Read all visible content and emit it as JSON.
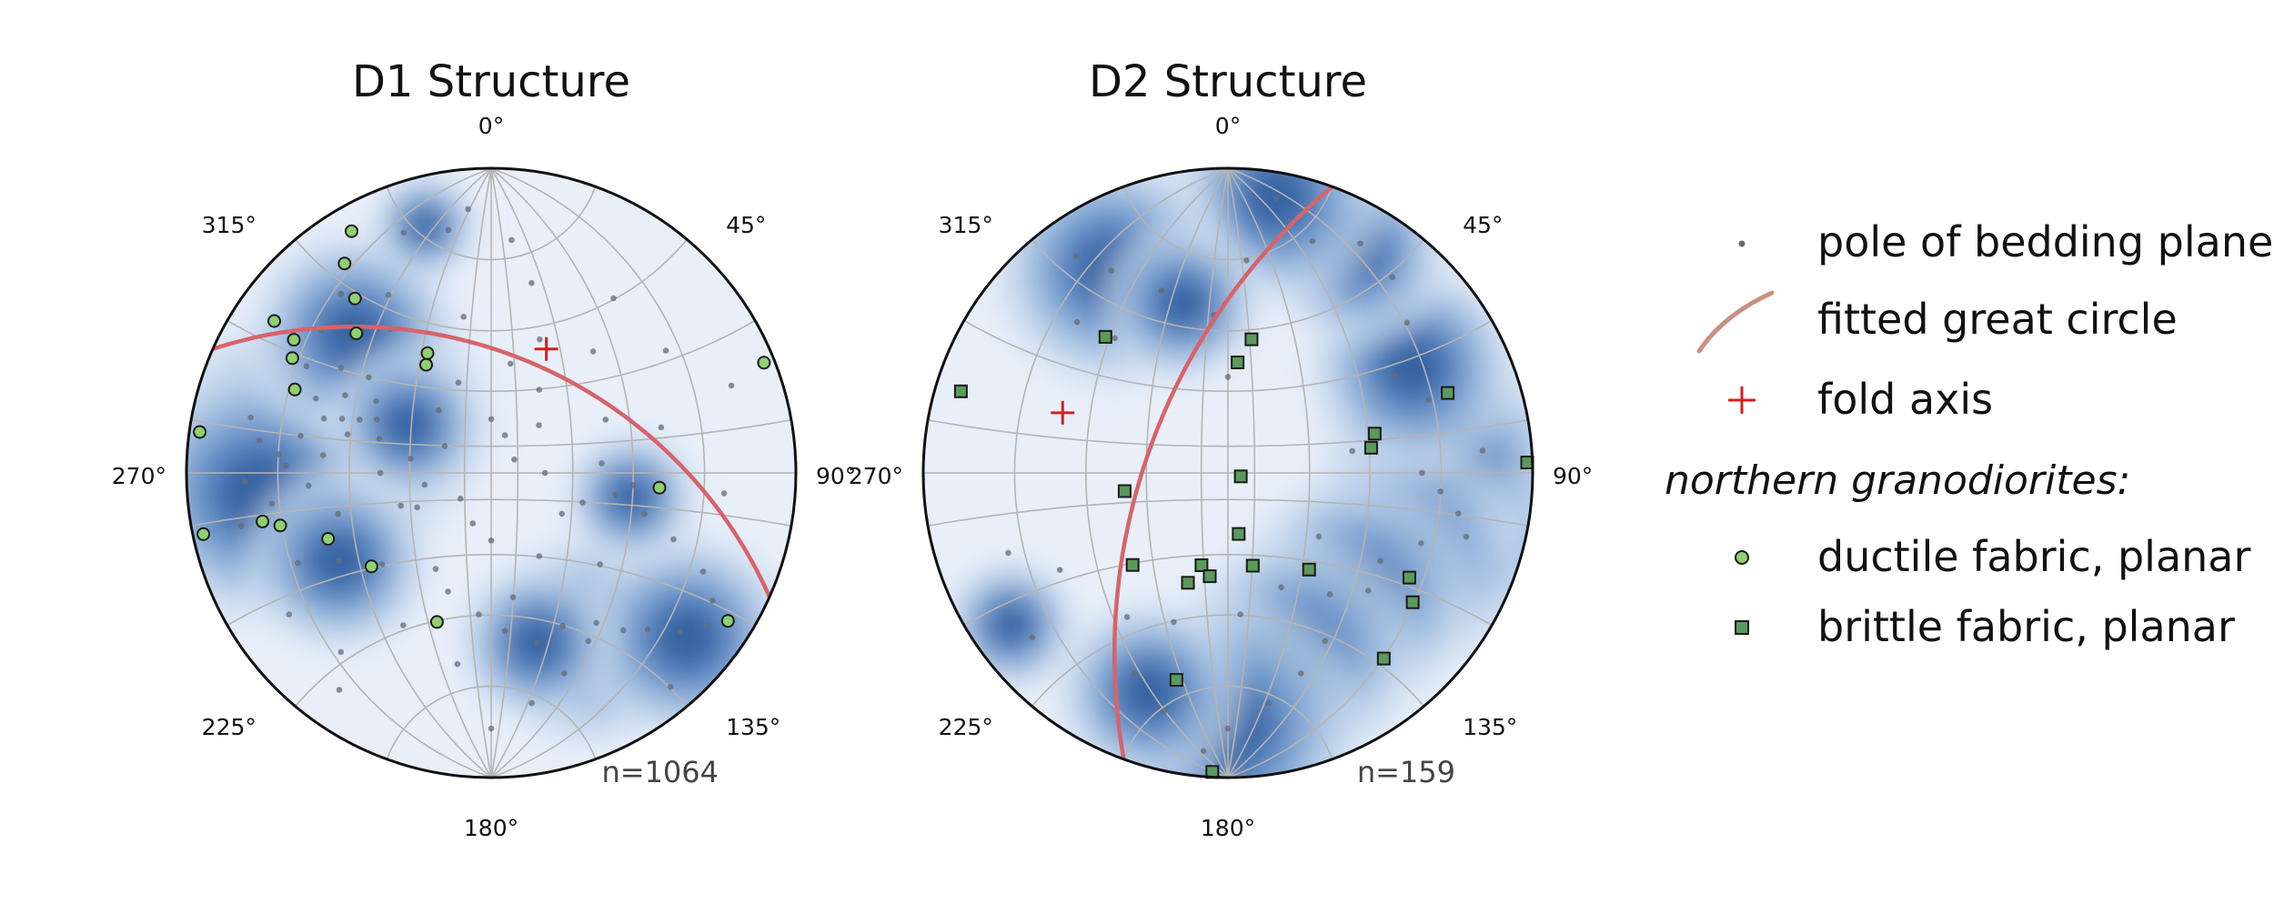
{
  "chart_data": [
    {
      "type": "scatter",
      "subtype": "stereonet",
      "title": "D1 Structure",
      "n_label": "n=1064",
      "azimuth_labels": [
        "0°",
        "45°",
        "90°",
        "135°",
        "180°",
        "225°",
        "270°",
        "315°"
      ],
      "density_contours": [
        {
          "azimuth": 292,
          "plunge": 40,
          "weight": 1.0
        },
        {
          "azimuth": 275,
          "plunge": 20,
          "weight": 1.0
        },
        {
          "azimuth": 265,
          "plunge": 15,
          "weight": 1.0
        },
        {
          "azimuth": 315,
          "plunge": 25,
          "weight": 0.8
        },
        {
          "azimuth": 300,
          "plunge": 55,
          "weight": 0.6
        },
        {
          "azimuth": 240,
          "plunge": 30,
          "weight": 0.7
        },
        {
          "azimuth": 150,
          "plunge": 25,
          "weight": 0.8
        },
        {
          "azimuth": 130,
          "plunge": 10,
          "weight": 0.8
        },
        {
          "azimuth": 165,
          "plunge": 30,
          "weight": 0.6
        },
        {
          "azimuth": 100,
          "plunge": 40,
          "weight": 0.5
        },
        {
          "azimuth": 345,
          "plunge": 10,
          "weight": 0.4
        }
      ],
      "poles_of_bedding": [
        {
          "azimuth": 292,
          "plunge": 40
        },
        {
          "azimuth": 290,
          "plunge": 35
        },
        {
          "azimuth": 295,
          "plunge": 45
        },
        {
          "azimuth": 288,
          "plunge": 30
        },
        {
          "azimuth": 285,
          "plunge": 38
        },
        {
          "azimuth": 298,
          "plunge": 33
        },
        {
          "azimuth": 275,
          "plunge": 20
        },
        {
          "azimuth": 278,
          "plunge": 15
        },
        {
          "azimuth": 272,
          "plunge": 22
        },
        {
          "azimuth": 268,
          "plunge": 12
        },
        {
          "azimuth": 262,
          "plunge": 18
        },
        {
          "azimuth": 258,
          "plunge": 10
        },
        {
          "azimuth": 281,
          "plunge": 25
        },
        {
          "azimuth": 283,
          "plunge": 12
        },
        {
          "azimuth": 300,
          "plunge": 20
        },
        {
          "azimuth": 305,
          "plunge": 28
        },
        {
          "azimuth": 310,
          "plunge": 18
        },
        {
          "azimuth": 315,
          "plunge": 25
        },
        {
          "azimuth": 320,
          "plunge": 15
        },
        {
          "azimuth": 325,
          "plunge": 30
        },
        {
          "azimuth": 330,
          "plunge": 22
        },
        {
          "azimuth": 340,
          "plunge": 10
        },
        {
          "azimuth": 350,
          "plunge": 12
        },
        {
          "azimuth": 355,
          "plunge": 8
        },
        {
          "azimuth": 5,
          "plunge": 15
        },
        {
          "azimuth": 12,
          "plunge": 25
        },
        {
          "azimuth": 20,
          "plunge": 40
        },
        {
          "azimuth": 30,
          "plunge": 55
        },
        {
          "azimuth": 40,
          "plunge": 35
        },
        {
          "azimuth": 55,
          "plunge": 20
        },
        {
          "azimuth": 65,
          "plunge": 45
        },
        {
          "azimuth": 75,
          "plunge": 30
        },
        {
          "azimuth": 85,
          "plunge": 50
        },
        {
          "azimuth": 95,
          "plunge": 40
        },
        {
          "azimuth": 100,
          "plunge": 45
        },
        {
          "azimuth": 105,
          "plunge": 35
        },
        {
          "azimuth": 110,
          "plunge": 25
        },
        {
          "azimuth": 115,
          "plunge": 15
        },
        {
          "azimuth": 120,
          "plunge": 10
        },
        {
          "azimuth": 125,
          "plunge": 8
        },
        {
          "azimuth": 130,
          "plunge": 12
        },
        {
          "azimuth": 135,
          "plunge": 18
        },
        {
          "azimuth": 140,
          "plunge": 22
        },
        {
          "azimuth": 145,
          "plunge": 28
        },
        {
          "azimuth": 150,
          "plunge": 25
        },
        {
          "azimuth": 155,
          "plunge": 32
        },
        {
          "azimuth": 160,
          "plunge": 20
        },
        {
          "azimuth": 165,
          "plunge": 30
        },
        {
          "azimuth": 170,
          "plunge": 15
        },
        {
          "azimuth": 175,
          "plunge": 35
        },
        {
          "azimuth": 180,
          "plunge": 10
        },
        {
          "azimuth": 190,
          "plunge": 25
        },
        {
          "azimuth": 200,
          "plunge": 45
        },
        {
          "azimuth": 210,
          "plunge": 30
        },
        {
          "azimuth": 220,
          "plunge": 15
        },
        {
          "azimuth": 230,
          "plunge": 40
        },
        {
          "azimuth": 240,
          "plunge": 30
        },
        {
          "azimuth": 245,
          "plunge": 20
        },
        {
          "azimuth": 250,
          "plunge": 55
        },
        {
          "azimuth": 255,
          "plunge": 35
        },
        {
          "azimuth": 260,
          "plunge": 65
        },
        {
          "azimuth": 270,
          "plunge": 50
        },
        {
          "azimuth": 280,
          "plunge": 60
        },
        {
          "azimuth": 300,
          "plunge": 70
        },
        {
          "azimuth": 320,
          "plunge": 60
        },
        {
          "azimuth": 340,
          "plunge": 55
        },
        {
          "azimuth": 0,
          "plunge": 70
        },
        {
          "azimuth": 20,
          "plunge": 75
        },
        {
          "azimuth": 45,
          "plunge": 65
        },
        {
          "azimuth": 60,
          "plunge": 80
        },
        {
          "azimuth": 90,
          "plunge": 70
        },
        {
          "azimuth": 120,
          "plunge": 60
        },
        {
          "azimuth": 150,
          "plunge": 55
        },
        {
          "azimuth": 180,
          "plunge": 65
        },
        {
          "azimuth": 200,
          "plunge": 70
        },
        {
          "azimuth": 230,
          "plunge": 75
        },
        {
          "azimuth": 130,
          "plunge": 40
        },
        {
          "azimuth": 170,
          "plunge": 45
        },
        {
          "azimuth": 210,
          "plunge": 50
        },
        {
          "azimuth": 245,
          "plunge": 60
        },
        {
          "azimuth": 350,
          "plunge": 35
        },
        {
          "azimuth": 10,
          "plunge": 50
        },
        {
          "azimuth": 35,
          "plunge": 20
        },
        {
          "azimuth": 70,
          "plunge": 10
        },
        {
          "azimuth": 95,
          "plunge": 15
        },
        {
          "azimuth": 108,
          "plunge": 55
        },
        {
          "azimuth": 140,
          "plunge": 5
        },
        {
          "azimuth": 185,
          "plunge": 40
        },
        {
          "azimuth": 215,
          "plunge": 8
        },
        {
          "azimuth": 235,
          "plunge": 12
        },
        {
          "azimuth": 287,
          "plunge": 48
        },
        {
          "azimuth": 293,
          "plunge": 26
        },
        {
          "azimuth": 276,
          "plunge": 32
        },
        {
          "azimuth": 266,
          "plunge": 28
        },
        {
          "azimuth": 302,
          "plunge": 42
        },
        {
          "azimuth": 308,
          "plunge": 36
        }
      ],
      "ductile_fabric_planar": [
        {
          "azimuth": 330,
          "plunge": 5
        },
        {
          "azimuth": 325,
          "plunge": 10
        },
        {
          "azimuth": 322,
          "plunge": 18
        },
        {
          "azimuth": 316,
          "plunge": 25
        },
        {
          "azimuth": 305,
          "plunge": 8
        },
        {
          "azimuth": 304,
          "plunge": 14
        },
        {
          "azimuth": 300,
          "plunge": 16
        },
        {
          "azimuth": 293,
          "plunge": 20
        },
        {
          "azimuth": 278,
          "plunge": 2
        },
        {
          "azimuth": 258,
          "plunge": 2
        },
        {
          "azimuth": 258,
          "plunge": 15
        },
        {
          "azimuth": 256,
          "plunge": 19
        },
        {
          "azimuth": 248,
          "plunge": 30
        },
        {
          "azimuth": 232,
          "plunge": 37
        },
        {
          "azimuth": 200,
          "plunge": 35
        },
        {
          "azimuth": 329,
          "plunge": 45
        },
        {
          "azimuth": 332,
          "plunge": 42
        },
        {
          "azimuth": 68,
          "plunge": 2
        },
        {
          "azimuth": 95,
          "plunge": 32
        },
        {
          "azimuth": 122,
          "plunge": 5
        }
      ],
      "fitted_great_circle": {
        "dip_direction": 24,
        "dip": 48
      },
      "fold_axis": {
        "azimuth": 24,
        "plunge": 42
      }
    },
    {
      "type": "scatter",
      "subtype": "stereonet",
      "title": "D2 Structure",
      "n_label": "n=159",
      "azimuth_labels": [
        "0°",
        "45°",
        "90°",
        "135°",
        "180°",
        "225°",
        "270°",
        "315°"
      ],
      "density_contours": [
        {
          "azimuth": 100,
          "plunge": 15,
          "weight": 1.0
        },
        {
          "azimuth": 85,
          "plunge": 20,
          "weight": 0.9
        },
        {
          "azimuth": 115,
          "plunge": 25,
          "weight": 0.9
        },
        {
          "azimuth": 135,
          "plunge": 30,
          "weight": 0.9
        },
        {
          "azimuth": 160,
          "plunge": 25,
          "weight": 0.9
        },
        {
          "azimuth": 180,
          "plunge": 10,
          "weight": 1.0
        },
        {
          "azimuth": 200,
          "plunge": 15,
          "weight": 0.7
        },
        {
          "azimuth": 60,
          "plunge": 20,
          "weight": 0.8
        },
        {
          "azimuth": 30,
          "plunge": 10,
          "weight": 0.7
        },
        {
          "azimuth": 10,
          "plunge": 5,
          "weight": 0.8
        },
        {
          "azimuth": 330,
          "plunge": 15,
          "weight": 0.9
        },
        {
          "azimuth": 345,
          "plunge": 30,
          "weight": 0.6
        },
        {
          "azimuth": 235,
          "plunge": 8,
          "weight": 0.5
        }
      ],
      "poles_of_bedding": [
        {
          "azimuth": 100,
          "plunge": 15
        },
        {
          "azimuth": 95,
          "plunge": 20
        },
        {
          "azimuth": 105,
          "plunge": 12
        },
        {
          "azimuth": 90,
          "plunge": 25
        },
        {
          "azimuth": 110,
          "plunge": 22
        },
        {
          "azimuth": 85,
          "plunge": 10
        },
        {
          "azimuth": 120,
          "plunge": 30
        },
        {
          "azimuth": 130,
          "plunge": 28
        },
        {
          "azimuth": 140,
          "plunge": 35
        },
        {
          "azimuth": 150,
          "plunge": 25
        },
        {
          "azimuth": 160,
          "plunge": 20
        },
        {
          "azimuth": 170,
          "plunge": 15
        },
        {
          "azimuth": 180,
          "plunge": 10
        },
        {
          "azimuth": 185,
          "plunge": 5
        },
        {
          "azimuth": 195,
          "plunge": 12
        },
        {
          "azimuth": 205,
          "plunge": 18
        },
        {
          "azimuth": 175,
          "plunge": 40
        },
        {
          "azimuth": 155,
          "plunge": 45
        },
        {
          "azimuth": 70,
          "plunge": 20
        },
        {
          "azimuth": 60,
          "plunge": 25
        },
        {
          "azimuth": 50,
          "plunge": 15
        },
        {
          "azimuth": 40,
          "plunge": 10
        },
        {
          "azimuth": 30,
          "plunge": 8
        },
        {
          "azimuth": 20,
          "plunge": 12
        },
        {
          "azimuth": 10,
          "plunge": 5
        },
        {
          "azimuth": 5,
          "plunge": 20
        },
        {
          "azimuth": 355,
          "plunge": 35
        },
        {
          "azimuth": 340,
          "plunge": 25
        },
        {
          "azimuth": 330,
          "plunge": 15
        },
        {
          "azimuth": 325,
          "plunge": 8
        },
        {
          "azimuth": 315,
          "plunge": 20
        },
        {
          "azimuth": 320,
          "plunge": 30
        },
        {
          "azimuth": 250,
          "plunge": 15
        },
        {
          "azimuth": 230,
          "plunge": 10
        },
        {
          "azimuth": 240,
          "plunge": 25
        },
        {
          "azimuth": 200,
          "plunge": 35
        },
        {
          "azimuth": 215,
          "plunge": 30
        },
        {
          "azimuth": 0,
          "plunge": 55
        },
        {
          "azimuth": 80,
          "plunge": 45
        },
        {
          "azimuth": 125,
          "plunge": 50
        }
      ],
      "brittle_fabric_planar": [
        {
          "azimuth": 5,
          "plunge": 50
        },
        {
          "azimuth": 10,
          "plunge": 42
        },
        {
          "azimuth": 318,
          "plunge": 28
        },
        {
          "azimuth": 287,
          "plunge": 5
        },
        {
          "azimuth": 70,
          "plunge": 15
        },
        {
          "azimuth": 88,
          "plunge": 1
        },
        {
          "azimuth": 80,
          "plunge": 39
        },
        {
          "azimuth": 75,
          "plunge": 37
        },
        {
          "azimuth": 260,
          "plunge": 52
        },
        {
          "azimuth": 105,
          "plunge": 85
        },
        {
          "azimuth": 170,
          "plunge": 67
        },
        {
          "azimuth": 226,
          "plunge": 43
        },
        {
          "azimuth": 196,
          "plunge": 55
        },
        {
          "azimuth": 190,
          "plunge": 52
        },
        {
          "azimuth": 200,
          "plunge": 48
        },
        {
          "azimuth": 165,
          "plunge": 55
        },
        {
          "azimuth": 140,
          "plunge": 45
        },
        {
          "azimuth": 120,
          "plunge": 21
        },
        {
          "azimuth": 125,
          "plunge": 17
        },
        {
          "azimuth": 140,
          "plunge": 13
        },
        {
          "azimuth": 194,
          "plunge": 20
        },
        {
          "azimuth": 183,
          "plunge": 1
        }
      ],
      "fitted_great_circle": {
        "dip_direction": 290,
        "dip": 60
      },
      "fold_axis": {
        "azimuth": 290,
        "plunge": 30
      }
    }
  ],
  "legend": {
    "items": [
      {
        "key": "pole",
        "label": "pole of bedding plane"
      },
      {
        "key": "great_circle",
        "label": "fitted great circle"
      },
      {
        "key": "fold_axis",
        "label": "fold axis"
      }
    ],
    "subheading": "northern granodiorites:",
    "sub_items": [
      {
        "key": "ductile",
        "label": "ductile fabric, planar"
      },
      {
        "key": "brittle",
        "label": "brittle fabric, planar"
      }
    ]
  },
  "colors": {
    "net_background": "#e8eff9",
    "contour_levels": [
      "#d6e2f2",
      "#b3cbe6",
      "#85a9d6",
      "#5b87c4",
      "#3566aa",
      "#1d4a8c"
    ],
    "grid": "#b4b4b4",
    "great_circle": "#d8636a",
    "great_circle_legend": "#c99080",
    "fold_axis": "#d22020",
    "pole_dot": "#666b75",
    "ductile_fill": "#90d070",
    "brittle_fill": "#5a9a5a",
    "marker_edge": "#1a1a1a"
  }
}
